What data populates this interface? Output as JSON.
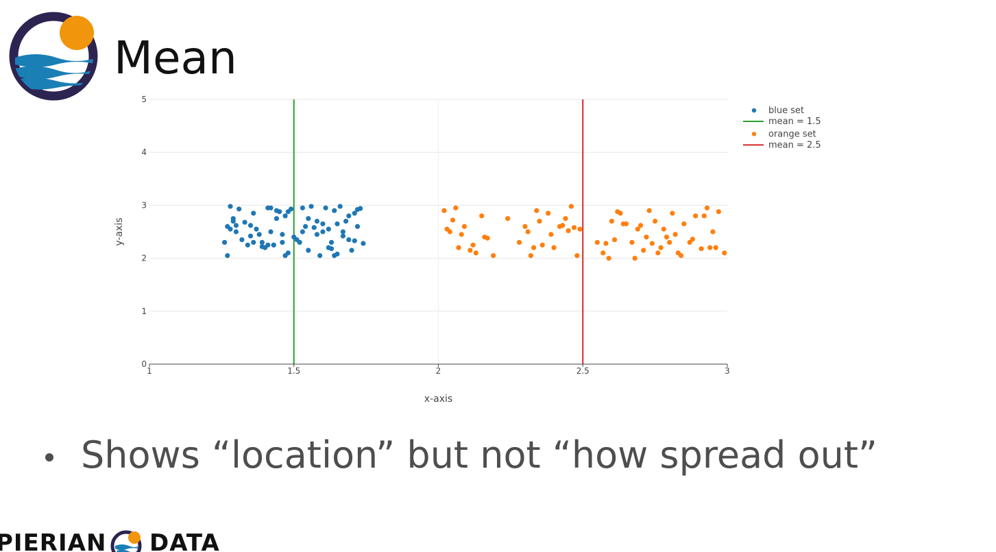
{
  "slide": {
    "title": "Mean",
    "bullet": "Shows “location” but not “how spread out”",
    "footer_brand": [
      "PIERIAN",
      "DATA"
    ]
  },
  "colors": {
    "blue": "#1f77b4",
    "orange": "#ff7f0e",
    "green": "#2ca02c",
    "red": "#d62728",
    "logo_navy": "#2d2452",
    "logo_sun": "#f0950c",
    "logo_wave": "#1a7fb5"
  },
  "chart_data": {
    "type": "scatter",
    "xlabel": "x-axis",
    "ylabel": "y-axis",
    "xlim": [
      1,
      3
    ],
    "ylim": [
      0,
      5
    ],
    "xticks": [
      1,
      1.5,
      2,
      2.5,
      3
    ],
    "xtick_labels": [
      "1",
      "1.5",
      "2",
      "2.5",
      "3"
    ],
    "yticks": [
      0,
      1,
      2,
      3,
      4,
      5
    ],
    "ytick_labels": [
      "0",
      "1",
      "2",
      "3",
      "4",
      "5"
    ],
    "grid": true,
    "legend_position": "top-right",
    "series": [
      {
        "name": "blue set",
        "kind": "scatter",
        "color": "#1f77b4",
        "x": [
          1.26,
          1.27,
          1.28,
          1.29,
          1.3,
          1.31,
          1.32,
          1.34,
          1.35,
          1.36,
          1.37,
          1.39,
          1.4,
          1.41,
          1.42,
          1.43,
          1.44,
          1.45,
          1.46,
          1.47,
          1.48,
          1.49,
          1.5,
          1.52,
          1.53,
          1.54,
          1.55,
          1.56,
          1.58,
          1.59,
          1.6,
          1.61,
          1.62,
          1.63,
          1.64,
          1.65,
          1.66,
          1.67,
          1.68,
          1.69,
          1.7,
          1.71,
          1.72,
          1.73,
          1.74,
          1.27,
          1.3,
          1.33,
          1.38,
          1.41,
          1.44,
          1.47,
          1.51,
          1.55,
          1.58,
          1.62,
          1.65,
          1.69,
          1.72,
          1.29,
          1.36,
          1.42,
          1.48,
          1.53,
          1.6,
          1.67,
          1.71,
          1.39,
          1.57,
          1.64,
          1.46,
          1.35,
          1.63,
          1.43,
          1.28
        ],
        "y": [
          2.3,
          2.6,
          2.98,
          2.7,
          2.5,
          2.93,
          2.35,
          2.25,
          2.42,
          2.85,
          2.55,
          2.3,
          2.2,
          2.95,
          2.5,
          2.25,
          2.75,
          2.88,
          2.3,
          2.05,
          2.1,
          2.93,
          2.4,
          2.3,
          2.95,
          2.6,
          2.15,
          2.98,
          2.7,
          2.05,
          2.5,
          2.95,
          2.2,
          2.3,
          2.05,
          2.65,
          2.98,
          2.5,
          2.7,
          2.35,
          2.15,
          2.85,
          2.92,
          2.94,
          2.28,
          2.05,
          2.62,
          2.68,
          2.45,
          2.25,
          2.9,
          2.8,
          2.35,
          2.75,
          2.45,
          2.55,
          2.08,
          2.8,
          2.6,
          2.75,
          2.3,
          2.95,
          2.88,
          2.5,
          2.65,
          2.42,
          2.33,
          2.22,
          2.58,
          2.9,
          2.45,
          2.62,
          2.18,
          2.25,
          2.55
        ]
      },
      {
        "name": "mean = 1.5",
        "kind": "vline",
        "color": "#2ca02c",
        "x": [
          1.5,
          1.5
        ],
        "y": [
          0,
          5
        ]
      },
      {
        "name": "orange set",
        "kind": "scatter",
        "color": "#ff7f0e",
        "x": [
          2.02,
          2.04,
          2.06,
          2.07,
          2.09,
          2.11,
          2.13,
          2.15,
          2.17,
          2.19,
          2.24,
          2.28,
          2.3,
          2.32,
          2.34,
          2.36,
          2.38,
          2.4,
          2.42,
          2.44,
          2.46,
          2.48,
          2.49,
          2.55,
          2.57,
          2.59,
          2.61,
          2.63,
          2.65,
          2.67,
          2.69,
          2.71,
          2.73,
          2.75,
          2.77,
          2.79,
          2.81,
          2.83,
          2.85,
          2.87,
          2.89,
          2.91,
          2.93,
          2.95,
          2.97,
          2.99,
          2.03,
          2.08,
          2.16,
          2.31,
          2.35,
          2.43,
          2.47,
          2.6,
          2.64,
          2.72,
          2.76,
          2.8,
          2.84,
          2.92,
          2.96,
          2.05,
          2.33,
          2.45,
          2.68,
          2.78,
          2.88,
          2.12,
          2.39,
          2.74,
          2.7,
          2.62,
          2.58,
          2.82,
          2.94
        ],
        "y": [
          2.9,
          2.5,
          2.95,
          2.2,
          2.6,
          2.15,
          2.1,
          2.8,
          2.38,
          2.05,
          2.75,
          2.3,
          2.6,
          2.05,
          2.9,
          2.25,
          2.85,
          2.2,
          2.6,
          2.75,
          2.98,
          2.05,
          2.55,
          2.3,
          2.1,
          2.0,
          2.35,
          2.85,
          2.65,
          2.3,
          2.55,
          2.15,
          2.9,
          2.7,
          2.2,
          2.4,
          2.85,
          2.1,
          2.65,
          2.3,
          2.8,
          2.18,
          2.95,
          2.5,
          2.88,
          2.1,
          2.55,
          2.45,
          2.4,
          2.5,
          2.7,
          2.62,
          2.58,
          2.7,
          2.65,
          2.4,
          2.1,
          2.3,
          2.05,
          2.8,
          2.2,
          2.72,
          2.2,
          2.52,
          2.0,
          2.55,
          2.36,
          2.25,
          2.45,
          2.28,
          2.62,
          2.88,
          2.28,
          2.45,
          2.2
        ]
      },
      {
        "name": "mean = 2.5",
        "kind": "vline",
        "color": "#d62728",
        "x": [
          2.5,
          2.5
        ],
        "y": [
          0,
          5
        ]
      }
    ]
  }
}
